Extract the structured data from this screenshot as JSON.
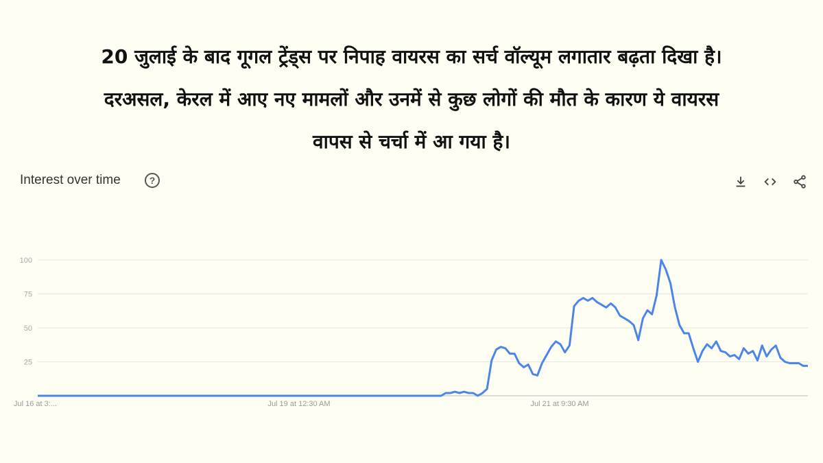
{
  "headline": {
    "lines": [
      "20 जुलाई के बाद गूगल ट्रेंड्स पर निपाह वायरस का सर्च वॉल्यूम लगातार बढ़ता दिखा है।",
      "दरअसल, केरल में आए नए मामलों और उनमें से कुछ लोगों की मौत के कारण ये वायरस",
      "वापस से चर्चा में आ गया है।"
    ]
  },
  "card": {
    "title": "Interest over time",
    "help_icon": "help-circle-icon",
    "help_glyph": "?",
    "toolbar": [
      "download-icon",
      "embed-code-icon",
      "share-icon"
    ]
  },
  "colors": {
    "line": "#4a86e8",
    "grid": "#e6e6e6",
    "background": "#fffef3"
  },
  "chart_data": {
    "type": "line",
    "title": "Interest over time",
    "ylim": [
      0,
      100
    ],
    "y_ticks": [
      25,
      50,
      75,
      100
    ],
    "x_tick_labels": [
      "Jul 16 at 3:...",
      "Jul 19 at 12:30 AM",
      "Jul 21 at 9:30 AM"
    ],
    "grid": true,
    "values": [
      0,
      0,
      0,
      0,
      0,
      0,
      0,
      0,
      0,
      0,
      0,
      0,
      0,
      0,
      0,
      0,
      0,
      0,
      0,
      0,
      0,
      0,
      0,
      0,
      0,
      0,
      0,
      0,
      0,
      0,
      0,
      0,
      0,
      0,
      0,
      0,
      0,
      0,
      0,
      0,
      0,
      0,
      0,
      0,
      0,
      0,
      0,
      0,
      0,
      0,
      0,
      0,
      0,
      0,
      0,
      0,
      0,
      0,
      0,
      0,
      0,
      0,
      0,
      0,
      0,
      0,
      0,
      0,
      0,
      0,
      0,
      0,
      0,
      0,
      0,
      0,
      0,
      0,
      0,
      0,
      0,
      0,
      0,
      0,
      0,
      0,
      0,
      0,
      0,
      2,
      2,
      3,
      2,
      3,
      2,
      2,
      0,
      2,
      5,
      26,
      34,
      36,
      35,
      31,
      31,
      24,
      21,
      23,
      16,
      15,
      24,
      30,
      36,
      40,
      38,
      32,
      37,
      66,
      70,
      72,
      70,
      72,
      69,
      67,
      65,
      68,
      65,
      59,
      57,
      55,
      52,
      41,
      57,
      63,
      60,
      74,
      100,
      93,
      83,
      65,
      52,
      46,
      46,
      35,
      25,
      33,
      38,
      35,
      40,
      33,
      32,
      29,
      30,
      27,
      35,
      31,
      33,
      26,
      37,
      29,
      34,
      37,
      28,
      25,
      24,
      24,
      24,
      22,
      22
    ]
  }
}
